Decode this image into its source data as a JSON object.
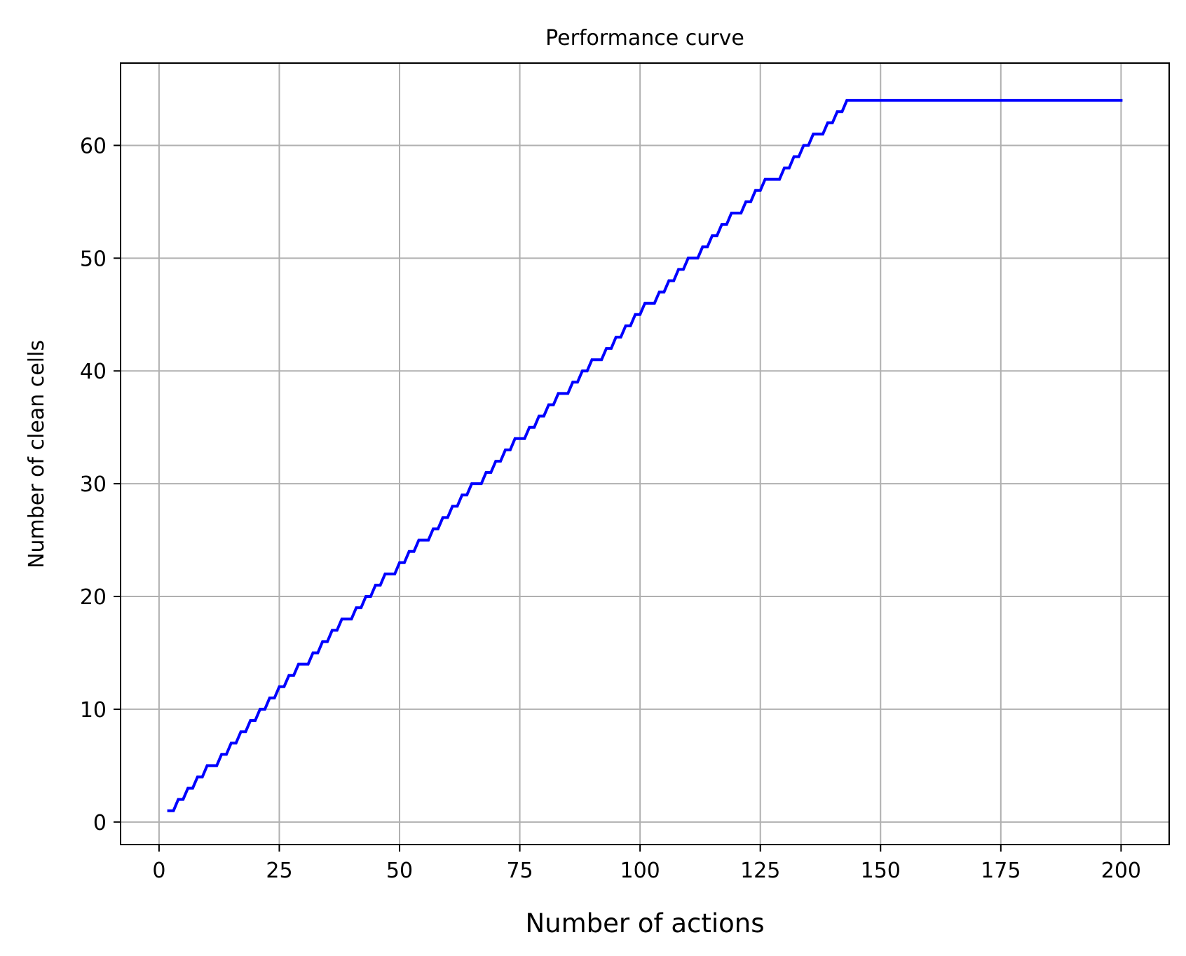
{
  "chart_data": {
    "type": "line",
    "title": "Performance curve",
    "xlabel": "Number of actions",
    "ylabel": "Number of clean cells",
    "xlim": [
      -8,
      210
    ],
    "ylim": [
      -2,
      67.3
    ],
    "xticks": [
      0,
      25,
      50,
      75,
      100,
      125,
      150,
      175,
      200
    ],
    "yticks": [
      0,
      10,
      20,
      30,
      40,
      50,
      60
    ],
    "xtick_labels": [
      "0",
      "25",
      "50",
      "75",
      "100",
      "125",
      "150",
      "175",
      "200"
    ],
    "ytick_labels": [
      "0",
      "10",
      "20",
      "30",
      "40",
      "50",
      "60"
    ],
    "grid": true,
    "series": [
      {
        "color": "#0000ff",
        "x": [
          2,
          3,
          4,
          5,
          6,
          7,
          8,
          9,
          10,
          11,
          12,
          13,
          14,
          15,
          16,
          17,
          18,
          19,
          20,
          21,
          22,
          23,
          24,
          25,
          26,
          27,
          28,
          29,
          30,
          31,
          32,
          33,
          34,
          35,
          36,
          37,
          38,
          39,
          40,
          41,
          42,
          43,
          44,
          45,
          46,
          47,
          48,
          49,
          50,
          51,
          52,
          53,
          54,
          55,
          56,
          57,
          58,
          59,
          60,
          61,
          62,
          63,
          64,
          65,
          66,
          67,
          68,
          69,
          70,
          71,
          72,
          73,
          74,
          75,
          76,
          77,
          78,
          79,
          80,
          81,
          82,
          83,
          84,
          85,
          86,
          87,
          88,
          89,
          90,
          91,
          92,
          93,
          94,
          95,
          96,
          97,
          98,
          99,
          100,
          101,
          102,
          103,
          104,
          105,
          106,
          107,
          108,
          109,
          110,
          111,
          112,
          113,
          114,
          115,
          116,
          117,
          118,
          119,
          120,
          121,
          122,
          123,
          124,
          125,
          126,
          127,
          128,
          129,
          130,
          131,
          132,
          133,
          134,
          135,
          136,
          137,
          138,
          139,
          140,
          141,
          142,
          143,
          200
        ],
        "y": [
          1,
          1,
          2,
          2,
          3,
          3,
          4,
          4,
          5,
          5,
          5,
          6,
          6,
          7,
          7,
          8,
          8,
          9,
          9,
          10,
          10,
          11,
          11,
          12,
          12,
          13,
          13,
          14,
          14,
          14,
          15,
          15,
          16,
          16,
          17,
          17,
          18,
          18,
          18,
          19,
          19,
          20,
          20,
          21,
          21,
          22,
          22,
          22,
          23,
          23,
          24,
          24,
          25,
          25,
          25,
          26,
          26,
          27,
          27,
          28,
          28,
          29,
          29,
          30,
          30,
          30,
          31,
          31,
          32,
          32,
          33,
          33,
          34,
          34,
          34,
          35,
          35,
          36,
          36,
          37,
          37,
          38,
          38,
          38,
          39,
          39,
          40,
          40,
          41,
          41,
          41,
          42,
          42,
          43,
          43,
          44,
          44,
          45,
          45,
          46,
          46,
          46,
          47,
          47,
          48,
          48,
          49,
          49,
          50,
          50,
          50,
          51,
          51,
          52,
          52,
          53,
          53,
          54,
          54,
          54,
          55,
          55,
          56,
          56,
          57,
          57,
          57,
          57,
          58,
          58,
          59,
          59,
          60,
          60,
          61,
          61,
          61,
          62,
          62,
          63,
          63,
          64,
          64
        ]
      }
    ]
  }
}
